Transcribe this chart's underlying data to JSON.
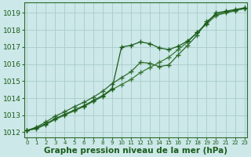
{
  "xlabel": "Graphe pression niveau de la mer (hPa)",
  "x_ticks": [
    0,
    1,
    2,
    3,
    4,
    5,
    6,
    7,
    8,
    9,
    10,
    11,
    12,
    13,
    14,
    15,
    16,
    17,
    18,
    19,
    20,
    21,
    22,
    23
  ],
  "ylim": [
    1011.7,
    1019.6
  ],
  "xlim": [
    -0.3,
    23.3
  ],
  "yticks": [
    1012,
    1013,
    1014,
    1015,
    1016,
    1017,
    1018,
    1019
  ],
  "bg_color": "#cce8e8",
  "grid_color": "#aacccc",
  "line_color1": "#1a5c1a",
  "line_color2": "#2d6a2d",
  "line_color3": "#3a7a3a",
  "line1": [
    1012.1,
    1012.25,
    1012.5,
    1012.8,
    1013.05,
    1013.3,
    1013.55,
    1013.85,
    1014.15,
    1014.55,
    1017.0,
    1017.1,
    1017.3,
    1017.2,
    1016.95,
    1016.85,
    1017.05,
    1017.35,
    1017.85,
    1018.4,
    1019.0,
    1019.1,
    1019.2,
    1019.3
  ],
  "line2": [
    1012.1,
    1012.3,
    1012.6,
    1012.95,
    1013.2,
    1013.5,
    1013.75,
    1014.05,
    1014.4,
    1014.85,
    1015.2,
    1015.55,
    1016.1,
    1016.05,
    1015.85,
    1015.95,
    1016.55,
    1017.1,
    1017.7,
    1018.5,
    1018.9,
    1019.05,
    1019.15,
    1019.25
  ],
  "line3": [
    1012.1,
    1012.2,
    1012.45,
    1012.75,
    1013.0,
    1013.25,
    1013.5,
    1013.8,
    1014.1,
    1014.5,
    1014.8,
    1015.1,
    1015.5,
    1015.8,
    1016.1,
    1016.4,
    1016.85,
    1017.3,
    1017.85,
    1018.35,
    1018.85,
    1019.0,
    1019.12,
    1019.28
  ],
  "marker": "+",
  "marker_size": 4,
  "linewidth": 0.9,
  "label_fontsize": 7.5,
  "tick_fontsize": 6.5
}
